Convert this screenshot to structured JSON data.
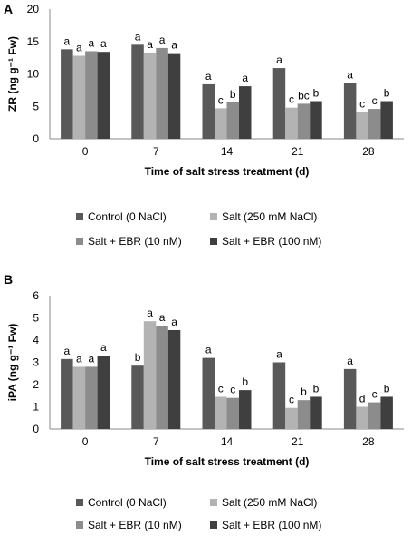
{
  "colors": [
    "#595959",
    "#b3b3b3",
    "#8c8c8c",
    "#3f3f3f"
  ],
  "legend": [
    "Control (0 NaCl)",
    "Salt (250 mM NaCl)",
    "Salt + EBR (10 nM)",
    "Salt + EBR (100 nM)"
  ],
  "chart_data": [
    {
      "type": "bar",
      "panel": "A",
      "categories": [
        "0",
        "7",
        "14",
        "21",
        "28"
      ],
      "xlabel": "Time of salt stress treatment (d)",
      "ylabel": "ZR (ng g⁻¹ Fw)",
      "ylim": [
        0,
        20
      ],
      "yticks": [
        0,
        5,
        10,
        15,
        20
      ],
      "series": [
        {
          "name": "Control (0 NaCl)",
          "values": [
            13.8,
            14.5,
            8.4,
            10.9,
            8.6
          ],
          "letters": [
            "a",
            "a",
            "a",
            "a",
            "a"
          ]
        },
        {
          "name": "Salt (250 mM NaCl)",
          "values": [
            12.8,
            13.3,
            4.7,
            4.8,
            4.1
          ],
          "letters": [
            "a",
            "a",
            "c",
            "c",
            "c"
          ]
        },
        {
          "name": "Salt + EBR (10 nM)",
          "values": [
            13.5,
            14.0,
            5.6,
            5.4,
            4.6
          ],
          "letters": [
            "a",
            "a",
            "b",
            "bc",
            "c"
          ]
        },
        {
          "name": "Salt + EBR (100 nM)",
          "values": [
            13.4,
            13.2,
            8.1,
            5.8,
            5.8
          ],
          "letters": [
            "a",
            "a",
            "a",
            "b",
            "b"
          ]
        }
      ]
    },
    {
      "type": "bar",
      "panel": "B",
      "categories": [
        "0",
        "7",
        "14",
        "21",
        "28"
      ],
      "xlabel": "Time of salt stress treatment (d)",
      "ylabel": "iPA (ng g⁻¹ Fw)",
      "ylim": [
        0,
        6
      ],
      "yticks": [
        0,
        1,
        2,
        3,
        4,
        5,
        6
      ],
      "series": [
        {
          "name": "Control (0 NaCl)",
          "values": [
            3.15,
            2.85,
            3.2,
            3.0,
            2.7
          ],
          "letters": [
            "a",
            "b",
            "a",
            "a",
            "a"
          ]
        },
        {
          "name": "Salt (250 mM NaCl)",
          "values": [
            2.8,
            4.85,
            1.45,
            0.95,
            1.0
          ],
          "letters": [
            "a",
            "a",
            "c",
            "c",
            "d"
          ]
        },
        {
          "name": "Salt + EBR (10 nM)",
          "values": [
            2.8,
            4.65,
            1.4,
            1.3,
            1.2
          ],
          "letters": [
            "a",
            "a",
            "c",
            "b",
            "c"
          ]
        },
        {
          "name": "Salt + EBR (100 nM)",
          "values": [
            3.3,
            4.45,
            1.75,
            1.45,
            1.45
          ],
          "letters": [
            "a",
            "a",
            "b",
            "b",
            "b"
          ]
        }
      ]
    }
  ]
}
